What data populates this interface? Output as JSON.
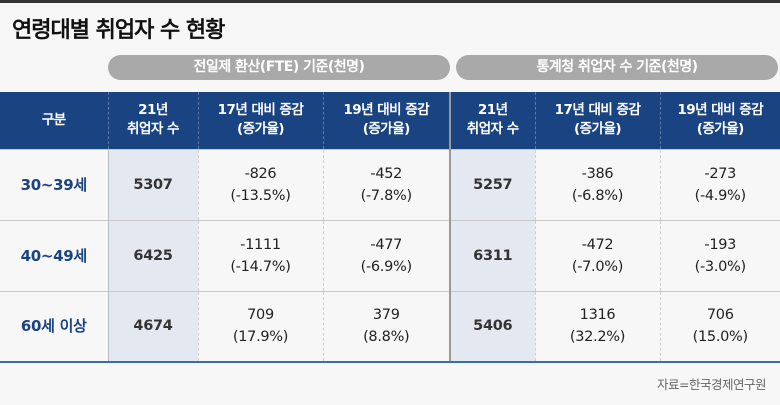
{
  "title": "연령대별 취업자 수 현황",
  "groups": [
    "전일제 환산(FTE) 기준(천명)",
    "통계청 취업자 수 기준(천명)"
  ],
  "headers": [
    [
      "구분"
    ],
    [
      "21년",
      "취업자 수"
    ],
    [
      "17년 대비 증감",
      "(증가율)"
    ],
    [
      "19년 대비 증감",
      "(증가율)"
    ],
    [
      "21년",
      "취업자 수"
    ],
    [
      "17년 대비 증감",
      "(증가율)"
    ],
    [
      "19년 대비 증감",
      "(증가율)"
    ]
  ],
  "rows": [
    {
      "label": "30~39세",
      "fte": "5307",
      "fte17": [
        "-826",
        "(-13.5%)"
      ],
      "fte19": [
        "-452",
        "(-7.8%)"
      ],
      "stat": "5257",
      "stat17": [
        "-386",
        "(-6.8%)"
      ],
      "stat19": [
        "-273",
        "(-4.9%)"
      ]
    },
    {
      "label": "40~49세",
      "fte": "6425",
      "fte17": [
        "-1111",
        "(-14.7%)"
      ],
      "fte19": [
        "-477",
        "(-6.9%)"
      ],
      "stat": "6311",
      "stat17": [
        "-472",
        "(-7.0%)"
      ],
      "stat19": [
        "-193",
        "(-3.0%)"
      ]
    },
    {
      "label": "60세 이상",
      "fte": "4674",
      "fte17": [
        "709",
        "(17.9%)"
      ],
      "fte19": [
        "379",
        "(8.8%)"
      ],
      "stat": "5406",
      "stat17": [
        "1316",
        "(32.2%)"
      ],
      "stat19": [
        "706",
        "(15.0%)"
      ]
    }
  ],
  "source": "자료=한국경제연구원",
  "colors": {
    "header": "#1a4382",
    "pill": "#a9a9a9",
    "highlight_col": "#e4e8f0"
  }
}
